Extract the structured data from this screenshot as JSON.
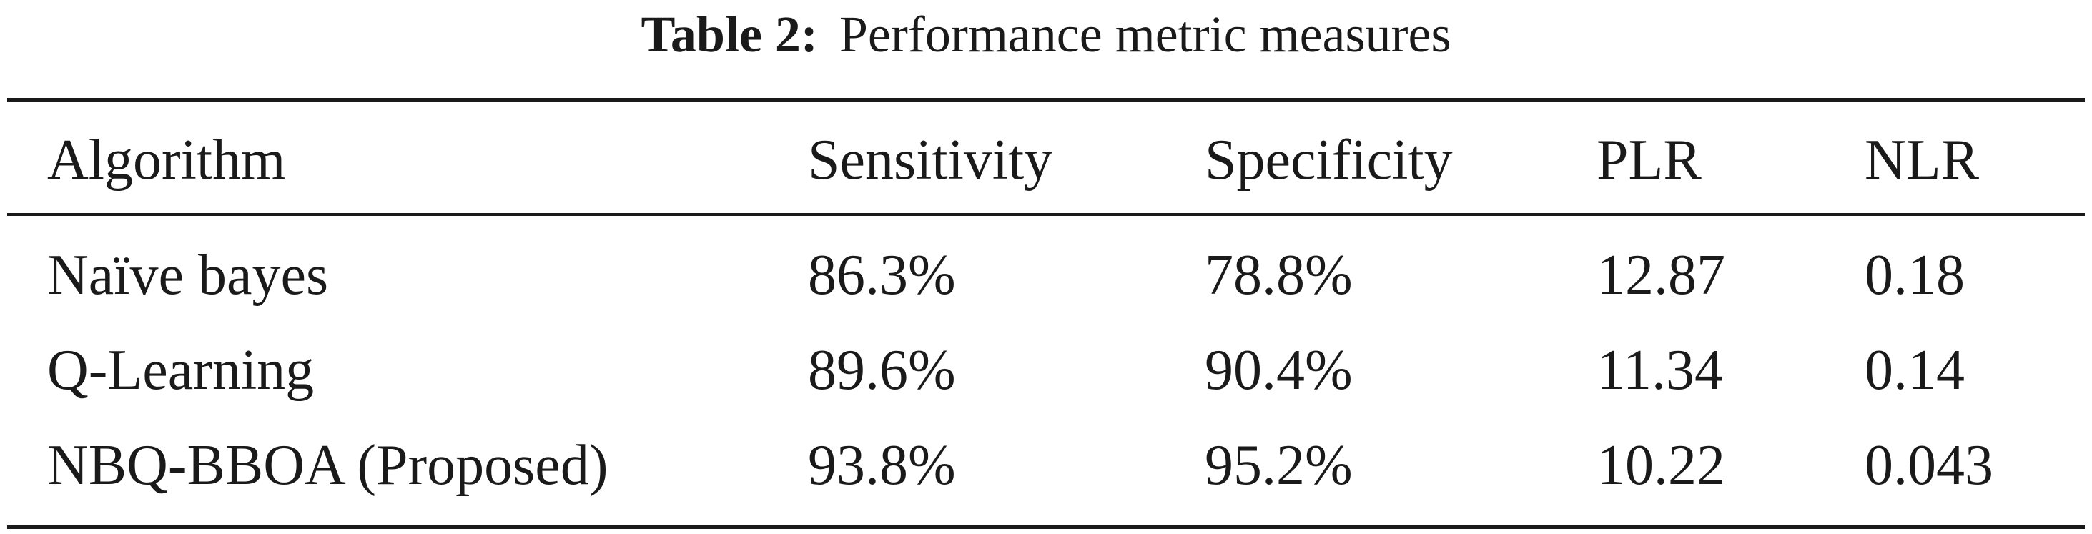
{
  "caption": {
    "label": "Table 2:",
    "text": "Performance metric measures"
  },
  "table": {
    "columns": [
      "Algorithm",
      "Sensitivity",
      "Specificity",
      "PLR",
      "NLR"
    ],
    "rows": [
      [
        "Naïve bayes",
        "86.3%",
        "78.8%",
        "12.87",
        "0.18"
      ],
      [
        "Q-Learning",
        "89.6%",
        "90.4%",
        "11.34",
        "0.14"
      ],
      [
        "NBQ-BBOA (Proposed)",
        "93.8%",
        "95.2%",
        "10.22",
        "0.043"
      ]
    ]
  }
}
